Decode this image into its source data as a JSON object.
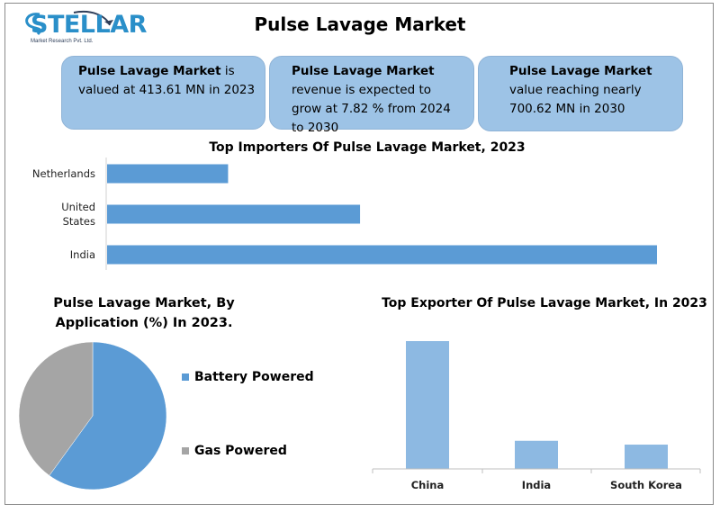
{
  "brand": {
    "name": "STELLAR",
    "tagline": "Market Research Pvt. Ltd."
  },
  "title": "Pulse Lavage Market",
  "cards": [
    {
      "bold": "Pulse Lavage Market",
      "rest": " is valued at 413.61 MN in 2023"
    },
    {
      "bold": "Pulse Lavage Market",
      "rest": " revenue is expected to grow at 7.82 % from 2024 to 2030"
    },
    {
      "bold": "Pulse Lavage Market",
      "rest": " value reaching nearly 700.62 MN in 2030"
    }
  ],
  "colors": {
    "bar": "#5b9bd5",
    "exporter_bar": "#8db9e2",
    "pie_blue": "#5b9bd5",
    "pie_gray": "#a5a5a5",
    "card_bg": "#9dc3e6"
  },
  "chart_data": [
    {
      "type": "bar",
      "orientation": "horizontal",
      "title": "Top Importers Of Pulse Lavage Market, 2023",
      "categories": [
        "Netherlands",
        "United States",
        "India"
      ],
      "values": [
        22,
        46,
        100
      ],
      "axis_shown": false,
      "grid": false
    },
    {
      "type": "pie",
      "title": "Pulse Lavage Market, By Application (%) In 2023.",
      "labels": [
        "Battery Powered",
        "Gas Powered"
      ],
      "values": [
        60,
        40
      ],
      "legend": "right"
    },
    {
      "type": "bar",
      "orientation": "vertical",
      "title": "Top Exporter Of Pulse Lavage Market, In 2023",
      "categories": [
        "China",
        "India",
        "South Korea"
      ],
      "values": [
        100,
        22,
        19
      ],
      "axis_shown": false,
      "grid": false
    }
  ]
}
